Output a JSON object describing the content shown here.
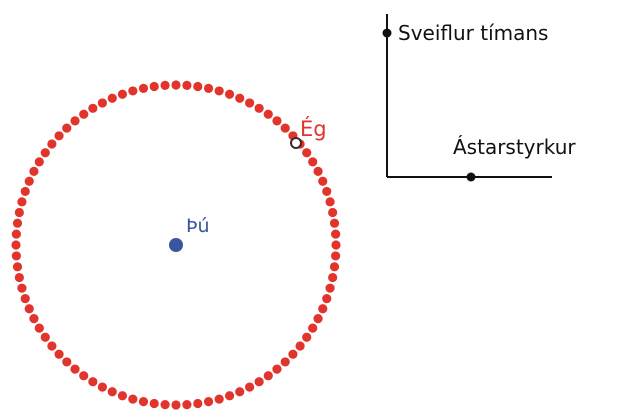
{
  "diagram": {
    "center_label": "Þú",
    "orbit_label": "Ég",
    "vertical_axis_label": "Sveiflur tímans",
    "horizontal_axis_label": "Ástarstyrkur"
  },
  "colors": {
    "center": "#3a56a0",
    "orbit": "#e0342c",
    "axis": "#111111",
    "text": "#111111"
  }
}
